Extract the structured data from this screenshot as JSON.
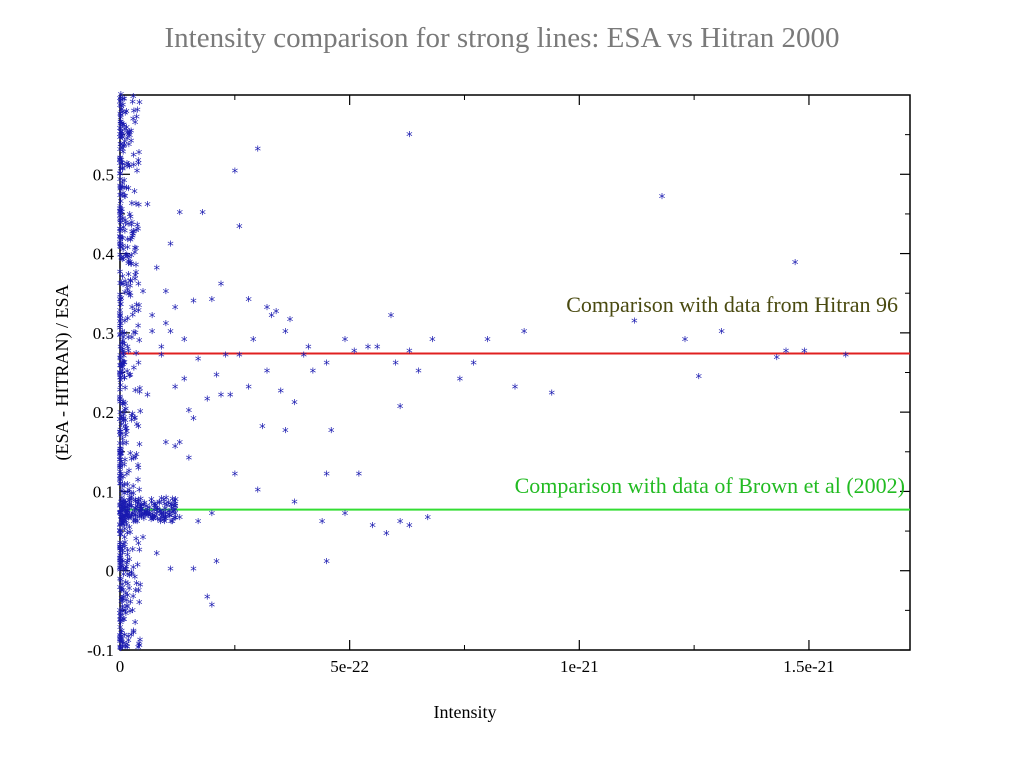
{
  "title": "Intensity comparison for strong lines: ESA vs Hitran 2000",
  "colors": {
    "points": "#1a1ab0",
    "hitran96_line": "#e02020",
    "brown_line": "#33dd33",
    "annot_hitran96": "#4a4a10",
    "annot_brown": "#22bb22"
  },
  "chart_data": {
    "type": "scatter",
    "title": "Intensity comparison for strong lines: ESA vs Hitran 2000",
    "xlabel": "Intensity",
    "ylabel": "(ESA - HITRAN) / ESA",
    "xlim": [
      0,
      1.72e-21
    ],
    "ylim": [
      -0.1,
      0.6
    ],
    "x_ticks": [
      {
        "value": 0,
        "label": "0"
      },
      {
        "value": 5e-22,
        "label": "5e-22"
      },
      {
        "value": 1e-21,
        "label": "1e-21"
      },
      {
        "value": 1.5e-21,
        "label": "1.5e-21"
      }
    ],
    "y_ticks": [
      {
        "value": -0.1,
        "label": "-0.1"
      },
      {
        "value": 0,
        "label": "0"
      },
      {
        "value": 0.1,
        "label": "0.1"
      },
      {
        "value": 0.2,
        "label": "0.2"
      },
      {
        "value": 0.3,
        "label": "0.3"
      },
      {
        "value": 0.4,
        "label": "0.4"
      },
      {
        "value": 0.5,
        "label": "0.5"
      }
    ],
    "grid": false,
    "reference_lines": [
      {
        "y": 0.274,
        "color": "#e02020",
        "label": "Comparison with data from Hitran 96"
      },
      {
        "y": 0.077,
        "color": "#33dd33",
        "label": "Comparison with data of Brown et al (2002)"
      }
    ],
    "series": [
      {
        "marker": "asterisk",
        "x": [
          6.3e-22,
          1.18e-21,
          1.47e-21,
          2.5e-22,
          3e-22,
          1.8e-22,
          1.3e-22,
          2.6e-22,
          1.1e-22,
          2.2e-22,
          1.6e-22,
          1e-22,
          2e-22,
          3.2e-22,
          3.4e-22,
          3.6e-22,
          4e-22,
          4.5e-22,
          4.9e-22,
          5.1e-22,
          5.4e-22,
          5.6e-22,
          5.9e-22,
          6e-22,
          6.3e-22,
          6.5e-22,
          6.8e-22,
          7.4e-22,
          7.7e-22,
          8e-22,
          8.6e-22,
          8.8e-22,
          9.4e-22,
          1.12e-21,
          1.23e-21,
          1.26e-21,
          1.31e-21,
          1.43e-21,
          1.45e-21,
          1.49e-21,
          1.58e-21,
          2.4e-22,
          2.8e-22,
          3.1e-22,
          3.5e-22,
          3.8e-22,
          4.2e-22,
          4.6e-22,
          6.1e-22,
          2.2e-22,
          1.5e-22,
          3.6e-22,
          3.2e-22,
          2.1e-22,
          1.7e-22,
          1.4e-22,
          1.2e-22,
          9e-23,
          7e-23,
          5e-23,
          2.9e-22,
          2.6e-22,
          2.3e-22,
          1.9e-22,
          1.6e-22,
          1.2e-22,
          1e-22,
          4.5e-22,
          5.2e-22,
          3e-22,
          6.1e-22,
          2.5e-22,
          3.8e-22,
          4.4e-22,
          4.9e-22,
          5.5e-22,
          5.8e-22,
          6.3e-22,
          6.7e-22,
          2e-22,
          1.7e-22,
          1.3e-22,
          9e-23,
          6e-23,
          4e-23,
          4.5e-22,
          1.6e-22,
          2.1e-22,
          1.9e-22,
          2e-22,
          1.1e-22,
          8e-23,
          5e-23,
          3e-23,
          2e-23,
          1.5e-23,
          1e-23,
          5e-24,
          3e-24,
          2e-23,
          3e-23,
          6e-23,
          8e-23,
          1e-22,
          1.2e-22,
          1.4e-22,
          2.8e-22,
          3.3e-22,
          3.7e-22,
          4.1e-22,
          6e-23,
          4e-23,
          3e-23,
          2e-23,
          1.5e-23,
          1e-23,
          8e-24,
          5e-24,
          3e-24,
          2e-24,
          4e-23,
          7e-23,
          9e-23,
          1.1e-22,
          1.3e-22,
          1.5e-22
        ],
        "y": [
          0.548,
          0.47,
          0.387,
          0.502,
          0.53,
          0.45,
          0.45,
          0.432,
          0.41,
          0.36,
          0.338,
          0.31,
          0.34,
          0.33,
          0.325,
          0.3,
          0.27,
          0.26,
          0.29,
          0.275,
          0.28,
          0.28,
          0.32,
          0.26,
          0.275,
          0.25,
          0.29,
          0.24,
          0.26,
          0.29,
          0.23,
          0.3,
          0.222,
          0.313,
          0.29,
          0.243,
          0.3,
          0.267,
          0.275,
          0.275,
          0.27,
          0.22,
          0.23,
          0.18,
          0.225,
          0.21,
          0.25,
          0.175,
          0.205,
          0.22,
          0.2,
          0.175,
          0.25,
          0.245,
          0.265,
          0.24,
          0.23,
          0.28,
          0.3,
          0.35,
          0.29,
          0.27,
          0.27,
          0.215,
          0.19,
          0.155,
          0.16,
          0.12,
          0.12,
          0.1,
          0.06,
          0.12,
          0.085,
          0.06,
          0.07,
          0.055,
          0.045,
          0.055,
          0.065,
          0.07,
          0.06,
          0.065,
          0.07,
          0.075,
          0.085,
          0.01,
          0.0,
          0.01,
          -0.035,
          -0.045,
          0.0,
          0.02,
          0.04,
          0.06,
          0.08,
          0.12,
          0.2,
          0.3,
          0.58,
          0.55,
          0.51,
          0.46,
          0.38,
          0.35,
          0.33,
          0.29,
          0.34,
          0.32,
          0.315,
          0.28,
          0.22,
          0.18,
          0.14,
          0.1,
          0.07,
          0.04,
          0.0,
          -0.05,
          -0.09,
          -0.1,
          0.36,
          0.32,
          0.27,
          0.3,
          0.16,
          0.14
        ]
      }
    ],
    "annotations": [
      {
        "text": "Comparison with data from Hitran 96",
        "color": "#4a4a10"
      },
      {
        "text": "Comparison with data of Brown et al (2002)",
        "color": "#22bb22"
      }
    ]
  }
}
